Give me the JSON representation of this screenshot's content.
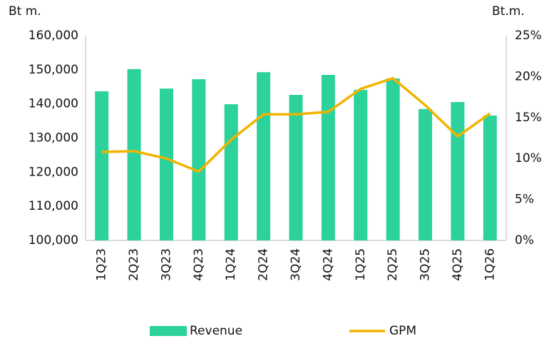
{
  "chart_data": {
    "type": "bar",
    "y_unit_label": "Bt m.",
    "y2_unit_label": "Bt.m.",
    "categories": [
      "1Q23",
      "2Q23",
      "3Q23",
      "4Q23",
      "1Q24",
      "2Q24",
      "3Q24",
      "4Q24",
      "1Q25",
      "2Q25",
      "3Q25",
      "4Q25",
      "1Q26"
    ],
    "series": [
      {
        "name": "Revenue",
        "type": "bar",
        "color": "#2dd19b",
        "values": [
          143700,
          150200,
          144500,
          147250,
          139900,
          149300,
          142650,
          148500,
          144100,
          147450,
          138500,
          140550,
          136600
        ]
      },
      {
        "name": "GPM",
        "type": "line",
        "axis": "y2",
        "color": "#f0b400",
        "values": [
          10.8,
          10.9,
          10.0,
          8.4,
          12.3,
          15.4,
          15.4,
          15.7,
          18.5,
          19.8,
          16.5,
          12.7,
          15.5
        ]
      }
    ],
    "ylim": [
      100000,
      160000
    ],
    "yticks": [
      {
        "value": 100000,
        "label": "100,000"
      },
      {
        "value": 110000,
        "label": "110,000"
      },
      {
        "value": 120000,
        "label": "120,000"
      },
      {
        "value": 130000,
        "label": "130,000"
      },
      {
        "value": 140000,
        "label": "140,000"
      },
      {
        "value": 150000,
        "label": "150,000"
      },
      {
        "value": 160000,
        "label": "160,000"
      }
    ],
    "y2lim": [
      0,
      25
    ],
    "y2ticks": [
      {
        "value": 0,
        "label": "0%"
      },
      {
        "value": 5,
        "label": "5%"
      },
      {
        "value": 10,
        "label": "10%"
      },
      {
        "value": 15,
        "label": "15%"
      },
      {
        "value": 20,
        "label": "20%"
      },
      {
        "value": 25,
        "label": "25%"
      }
    ],
    "grid": false,
    "legend": "bottom"
  }
}
